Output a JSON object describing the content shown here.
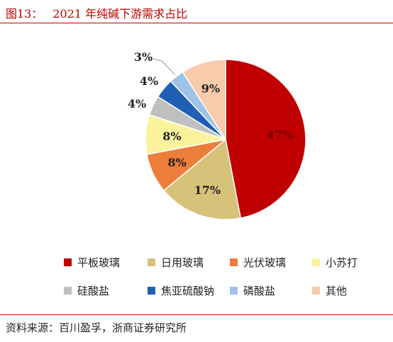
{
  "header": {
    "figure_number": "图13：",
    "title": "2021 年纯碱下游需求占比"
  },
  "footer": {
    "source": "资料来源：百川盈孚，浙商证券研究所"
  },
  "chart_data": {
    "type": "pie",
    "title": "2021 年纯碱下游需求占比",
    "start_angle": "12 o'clock",
    "direction": "clockwise",
    "legend_position": "bottom",
    "slices": [
      {
        "name": "平板玻璃",
        "value": 47,
        "label": "47%",
        "color": "#c00000"
      },
      {
        "name": "日用玻璃",
        "value": 17,
        "label": "17%",
        "color": "#d8c179"
      },
      {
        "name": "光伏玻璃",
        "value": 8,
        "label": "8%",
        "color": "#ed7d3b"
      },
      {
        "name": "小苏打",
        "value": 8,
        "label": "8%",
        "color": "#fbf39c"
      },
      {
        "name": "硅酸盐",
        "value": 4,
        "label": "4%",
        "color": "#bfbfbf"
      },
      {
        "name": "焦亚硫酸钠",
        "value": 4,
        "label": "4%",
        "color": "#1f5fb4"
      },
      {
        "name": "磷酸盐",
        "value": 3,
        "label": "3%",
        "color": "#9dc3e6"
      },
      {
        "name": "其他",
        "value": 9,
        "label": "9%",
        "color": "#f8cbad"
      }
    ]
  }
}
